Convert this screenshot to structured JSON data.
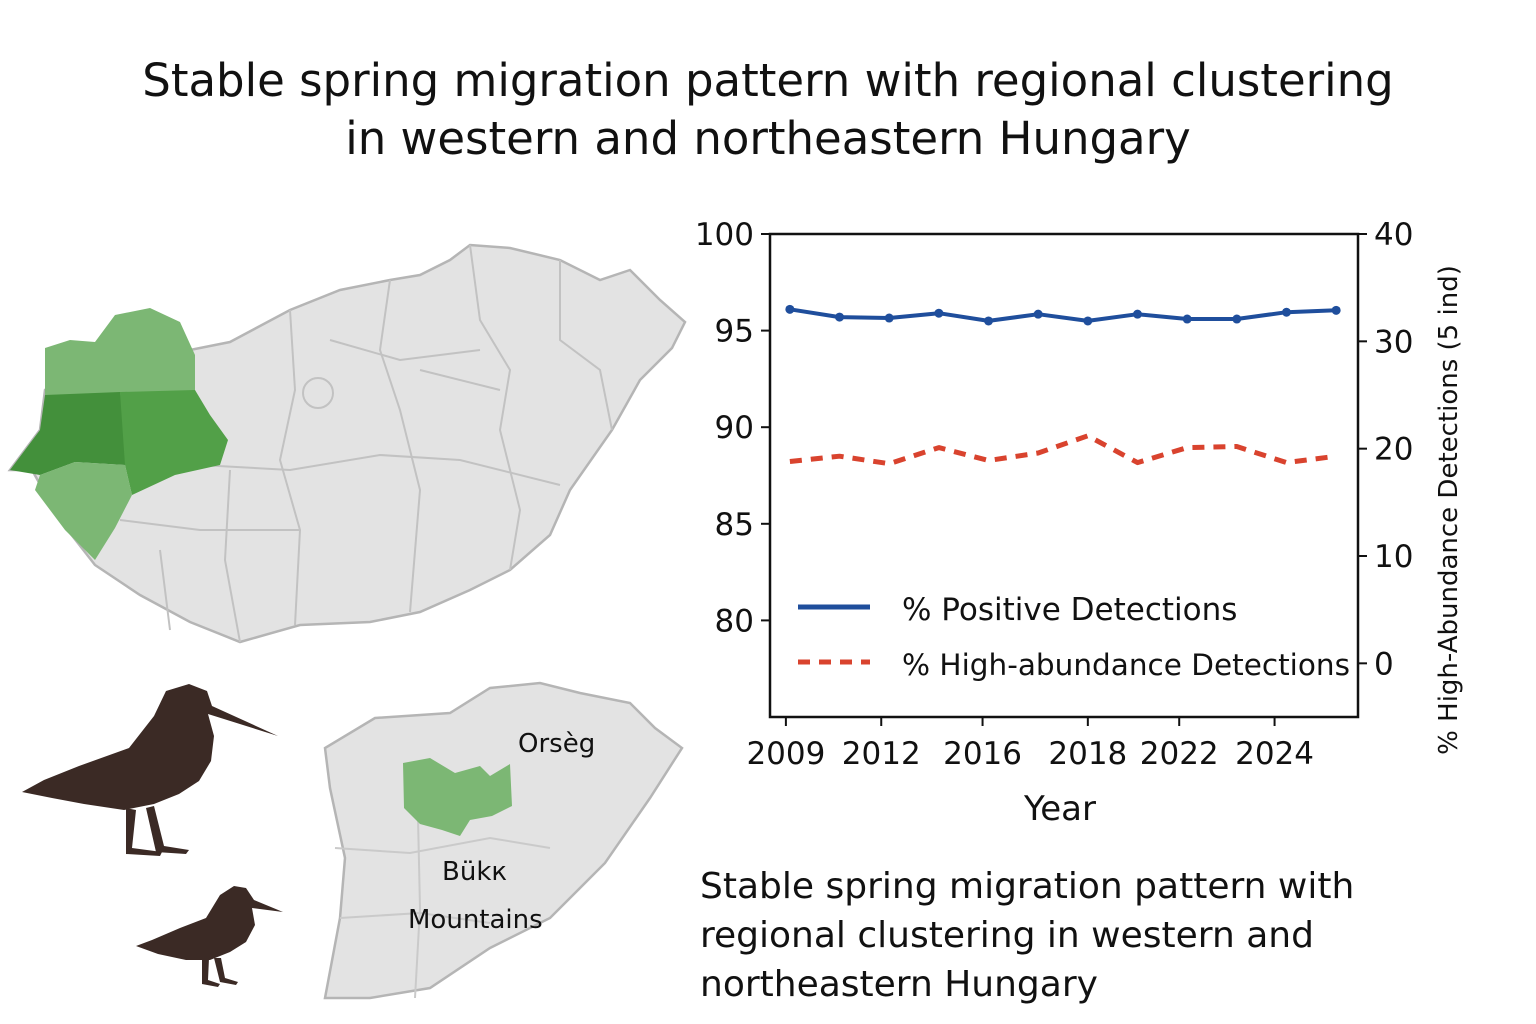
{
  "title": {
    "line1": "Stable spring migration pattern with regional clustering",
    "line2": "in western and northeastern Hungary"
  },
  "map": {
    "inset_labels": {
      "orseg": "Orsèg",
      "bukk_line1": "Bükк",
      "bukk_line2": "Mountains"
    },
    "colors": {
      "land": "#e3e3e3",
      "border": "#b5b5b5",
      "light_green": "#7cb774",
      "mid_green": "#52a048",
      "dark_green": "#43903b",
      "bird": "#3b2a25"
    }
  },
  "chart_data": {
    "type": "line",
    "x": [
      2010,
      2011.25,
      2012.5,
      2013.75,
      2015,
      2016.25,
      2017.5,
      2018.75,
      2020,
      2021.25,
      2022.5,
      2023.75
    ],
    "xticks": [
      "2009",
      "2012",
      "2016",
      "2018",
      "2022",
      "2024"
    ],
    "xlabel": "Year",
    "ylabel": "",
    "ylabel_right": "% High-Abundance Detections (5 ind)",
    "ylim": [
      75,
      100
    ],
    "ylim_right": [
      -5,
      40
    ],
    "yticks": [
      80,
      85,
      90,
      95,
      100
    ],
    "yticks_right": [
      0,
      10,
      20,
      30,
      40
    ],
    "series": [
      {
        "name": "% Positive Detections",
        "axis": "left",
        "color": "#1f4e9c",
        "style": "solid",
        "values": [
          96.1,
          95.7,
          95.65,
          95.9,
          95.5,
          95.85,
          95.5,
          95.85,
          95.6,
          95.6,
          95.95,
          96.05
        ]
      },
      {
        "name": "% High-abundance Detections",
        "axis": "right",
        "color": "#d9432e",
        "style": "dashed",
        "values": [
          18.8,
          19.3,
          18.6,
          20.1,
          18.9,
          19.6,
          21.2,
          18.7,
          20.1,
          20.2,
          18.7,
          19.3
        ]
      }
    ],
    "legend": "lower-left",
    "grid": false
  },
  "caption": {
    "line1": "Stable spring migration pattern with",
    "line2": "regional clustering in western and",
    "line3": "northeastern Hungary"
  }
}
